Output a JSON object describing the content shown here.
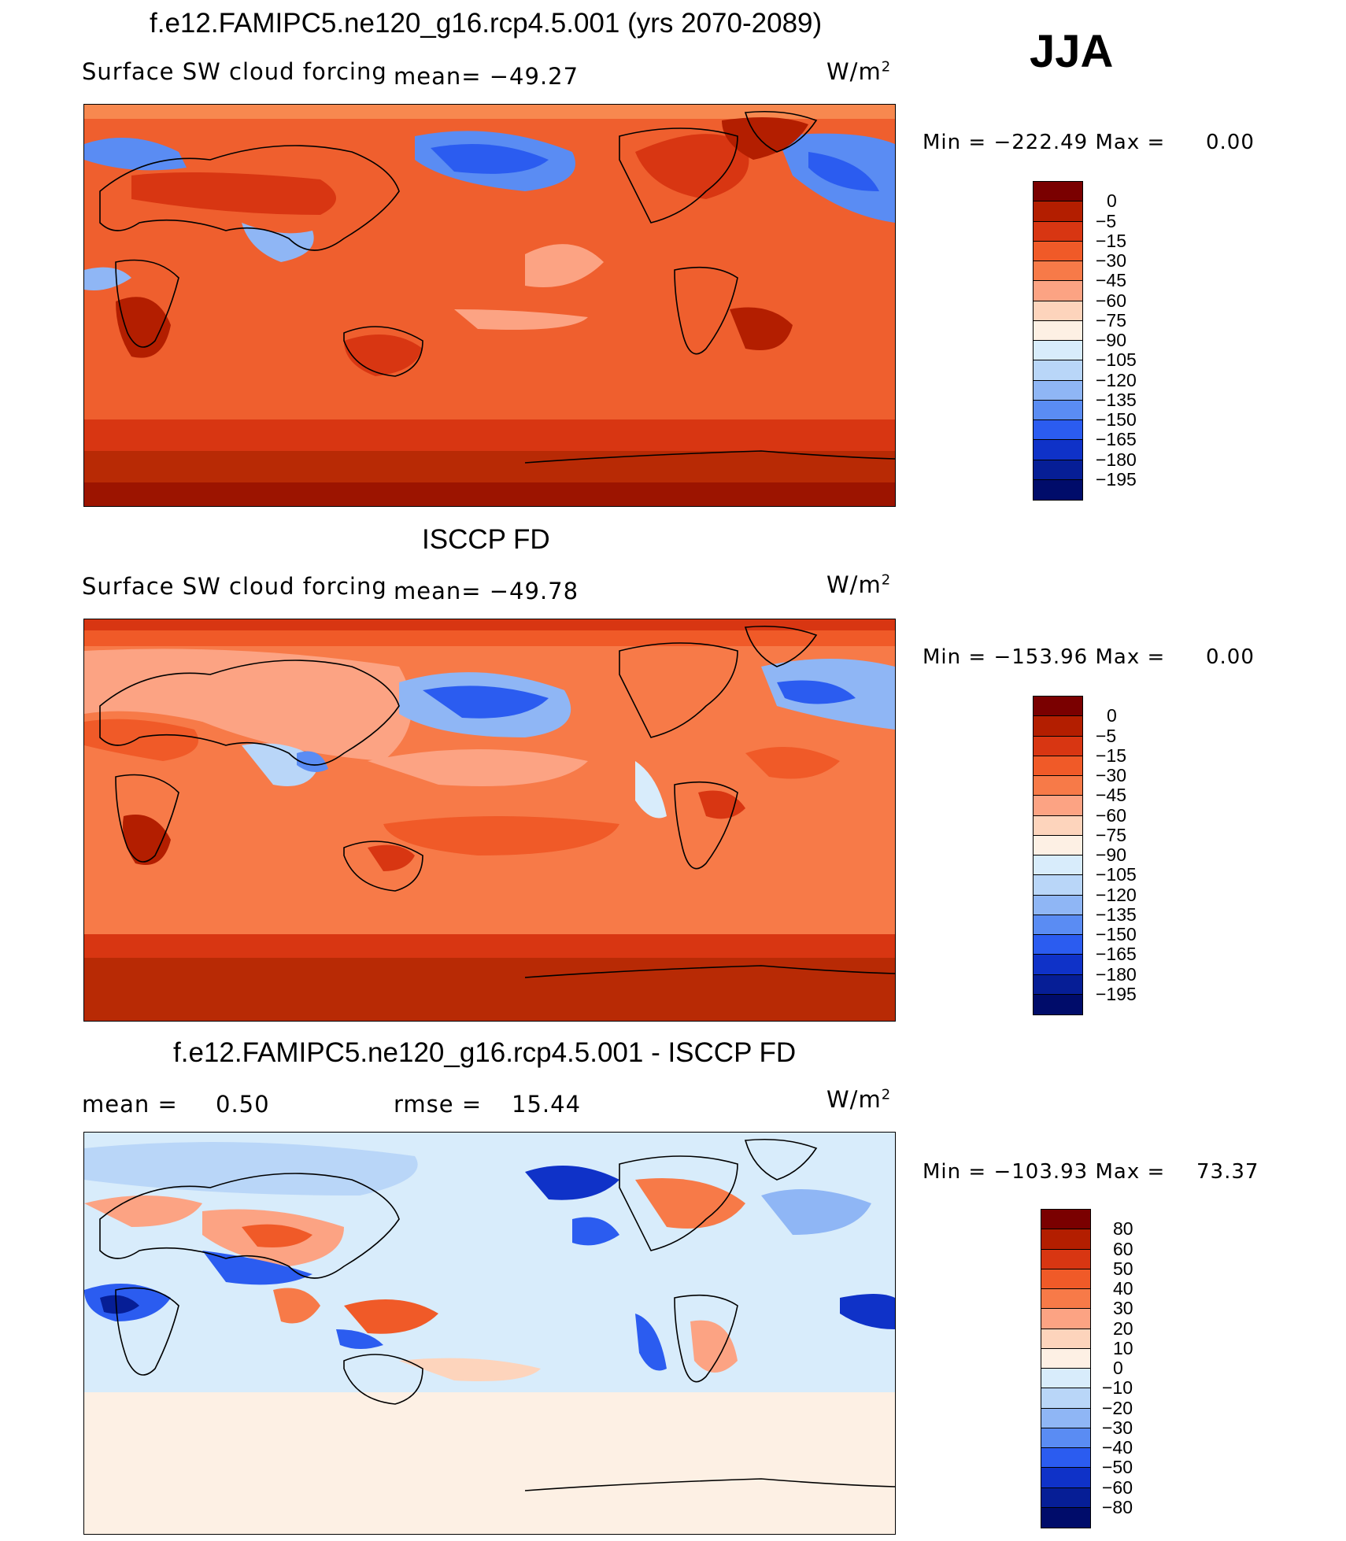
{
  "season": "JJA",
  "panels": [
    {
      "title": "f.e12.FAMIPC5.ne120_g16.rcp4.5.001 (yrs 2070-2089)",
      "left_label": "Surface SW cloud forcing",
      "mean_label": "mean= −49.27",
      "units": "W/m",
      "units_sup": "2",
      "minmax": "Min = −222.49 Max =",
      "max_val": "0.00",
      "levels": [
        "0",
        "−5",
        "−15",
        "−30",
        "−45",
        "−60",
        "−75",
        "−90",
        "−105",
        "−120",
        "−135",
        "−150",
        "−165",
        "−180",
        "−195"
      ]
    },
    {
      "title": "ISCCP FD",
      "left_label": "Surface SW cloud forcing",
      "mean_label": "mean= −49.78",
      "units": "W/m",
      "units_sup": "2",
      "minmax": "Min = −153.96 Max =",
      "max_val": "0.00",
      "levels": [
        "0",
        "−5",
        "−15",
        "−30",
        "−45",
        "−60",
        "−75",
        "−90",
        "−105",
        "−120",
        "−135",
        "−150",
        "−165",
        "−180",
        "−195"
      ]
    },
    {
      "title": "f.e12.FAMIPC5.ne120_g16.rcp4.5.001 - ISCCP FD",
      "mean_text": "mean =",
      "mean_val": "0.50",
      "rmse_text": "rmse =",
      "rmse_val": "15.44",
      "units": "W/m",
      "units_sup": "2",
      "minmax": "Min = −103.93 Max =",
      "max_val": "73.37",
      "levels": [
        "80",
        "60",
        "50",
        "40",
        "30",
        "20",
        "10",
        "0",
        "−10",
        "−20",
        "−30",
        "−40",
        "−50",
        "−60",
        "−80"
      ]
    }
  ],
  "colors": {
    "cbar_abs": [
      "#7a0000",
      "#b31e00",
      "#d83612",
      "#f05a28",
      "#f77a48",
      "#fca383",
      "#fdd4bc",
      "#fdf0e4",
      "#d8ecfb",
      "#b9d6f8",
      "#8fb6f5",
      "#5a8cf3",
      "#2b5cf0",
      "#0f32c8",
      "#061e96",
      "#000c6a"
    ],
    "cbar_diff": [
      "#7a0000",
      "#b31e00",
      "#d83612",
      "#f05a28",
      "#f77a48",
      "#fca383",
      "#fdd4bc",
      "#fdf0e4",
      "#d8ecfb",
      "#b9d6f8",
      "#8fb6f5",
      "#5a8cf3",
      "#2b5cf0",
      "#0f32c8",
      "#061e96",
      "#000c6a"
    ]
  }
}
